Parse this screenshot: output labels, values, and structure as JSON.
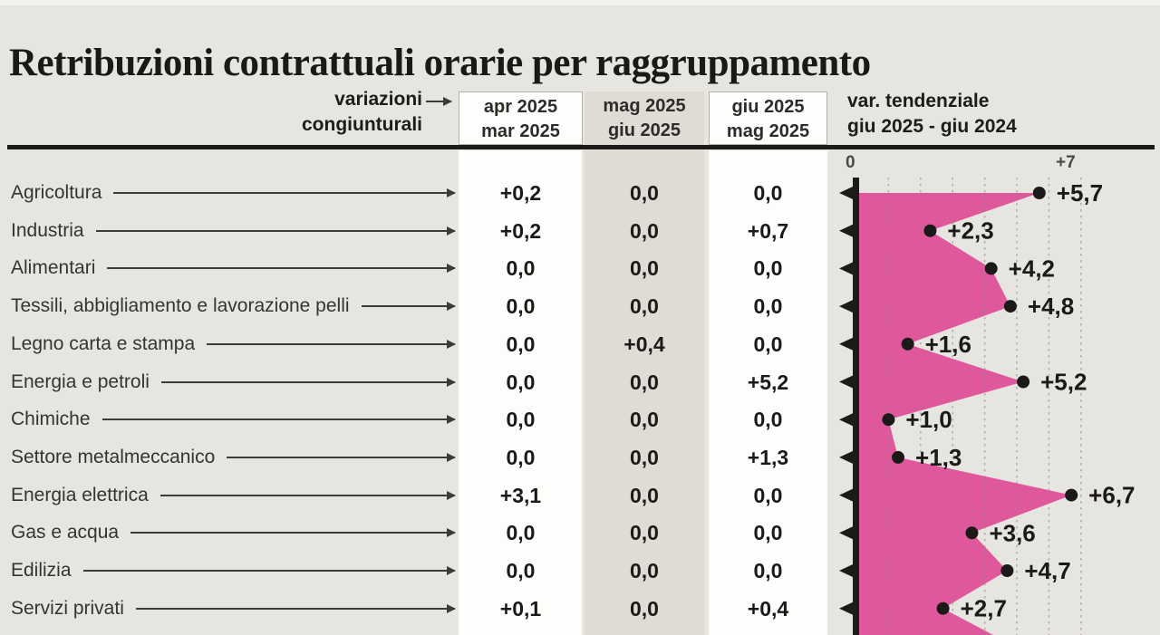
{
  "title": "Retribuzioni contrattuali orarie per raggruppamento",
  "table": {
    "axis_note": {
      "line1": "variazioni",
      "line2": "congiunturali"
    },
    "columns": [
      {
        "line1": "apr 2025",
        "line2": "mar 2025"
      },
      {
        "line1": "mag 2025",
        "line2": "giu 2025"
      },
      {
        "line1": "giu 2025",
        "line2": "mag 2025"
      }
    ],
    "rows": [
      {
        "label": "Agricoltura",
        "values": [
          "+0,2",
          "0,0",
          "0,0"
        ],
        "trend_label": "+5,7",
        "trend_value": 5.7
      },
      {
        "label": "Industria",
        "values": [
          "+0,2",
          "0,0",
          "+0,7"
        ],
        "trend_label": "+2,3",
        "trend_value": 2.3
      },
      {
        "label": "Alimentari",
        "values": [
          "0,0",
          "0,0",
          "0,0"
        ],
        "trend_label": "+4,2",
        "trend_value": 4.2
      },
      {
        "label": "Tessili, abbigliamento e lavorazione pelli",
        "values": [
          "0,0",
          "0,0",
          "0,0"
        ],
        "trend_label": "+4,8",
        "trend_value": 4.8
      },
      {
        "label": "Legno carta e stampa",
        "values": [
          "0,0",
          "+0,4",
          "0,0"
        ],
        "trend_label": "+1,6",
        "trend_value": 1.6
      },
      {
        "label": "Energia e petroli",
        "values": [
          "0,0",
          "0,0",
          "+5,2"
        ],
        "trend_label": "+5,2",
        "trend_value": 5.2
      },
      {
        "label": "Chimiche",
        "values": [
          "0,0",
          "0,0",
          "0,0"
        ],
        "trend_label": "+1,0",
        "trend_value": 1.0
      },
      {
        "label": "Settore metalmeccanico",
        "values": [
          "0,0",
          "0,0",
          "+1,3"
        ],
        "trend_label": "+1,3",
        "trend_value": 1.3
      },
      {
        "label": "Energia elettrica",
        "values": [
          "+3,1",
          "0,0",
          "0,0"
        ],
        "trend_label": "+6,7",
        "trend_value": 6.7
      },
      {
        "label": "Gas e acqua",
        "values": [
          "0,0",
          "0,0",
          "0,0"
        ],
        "trend_label": "+3,6",
        "trend_value": 3.6
      },
      {
        "label": "Edilizia",
        "values": [
          "0,0",
          "0,0",
          "0,0"
        ],
        "trend_label": "+4,7",
        "trend_value": 4.7
      },
      {
        "label": "Servizi privati",
        "values": [
          "+0,1",
          "0,0",
          "+0,4"
        ],
        "trend_label": "+2,7",
        "trend_value": 2.7
      }
    ]
  },
  "trend": {
    "header_line1": "var. tendenziale",
    "header_line2": "giu 2025 - giu 2024",
    "axis_min_label": "0",
    "axis_max_label": "+7"
  },
  "chart_data": {
    "type": "area",
    "title": "var. tendenziale giu 2025 - giu 2024",
    "orientation": "horizontal",
    "categories": [
      "Agricoltura",
      "Industria",
      "Alimentari",
      "Tessili, abbigliamento e lavorazione pelli",
      "Legno carta e stampa",
      "Energia e petroli",
      "Chimiche",
      "Settore metalmeccanico",
      "Energia elettrica",
      "Gas e acqua",
      "Edilizia",
      "Servizi privati"
    ],
    "values": [
      5.7,
      2.3,
      4.2,
      4.8,
      1.6,
      5.2,
      1.0,
      1.3,
      6.7,
      3.6,
      4.7,
      2.7
    ],
    "value_labels": [
      "+5,7",
      "+2,3",
      "+4,2",
      "+4,8",
      "+1,6",
      "+5,2",
      "+1,0",
      "+1,3",
      "+6,7",
      "+3,6",
      "+4,7",
      "+2,7"
    ],
    "xlim": [
      0,
      7
    ],
    "axis_tick_labels": [
      "0",
      "+7"
    ],
    "grid": "dotted vertical lines every 1 unit, drawn over area",
    "legend": "none",
    "colors": {
      "area": "#e0589c",
      "dot": "#1b1a18",
      "axis": "#1c1b19"
    }
  },
  "colors": {
    "background": "#e7e5df",
    "band_white": "#fdfdfb",
    "band_gray": "#dedcd5",
    "accent_pink": "#e0589c",
    "ink": "#1b1a18"
  }
}
